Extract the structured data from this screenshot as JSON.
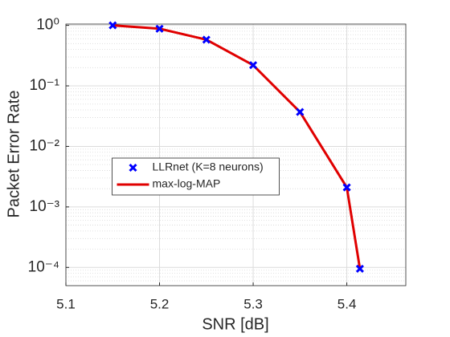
{
  "chart_data": {
    "type": "line",
    "xlabel": "SNR [dB]",
    "ylabel": "Packet Error Rate",
    "x": [
      5.15,
      5.2,
      5.25,
      5.3,
      5.35,
      5.4,
      5.414
    ],
    "series": [
      {
        "name": "LLRnet (K=8 neurons)",
        "color": "#0000ff",
        "marker": "x",
        "line": false,
        "values": [
          1.0,
          0.88,
          0.58,
          0.22,
          0.037,
          0.0021,
          9.5e-05
        ]
      },
      {
        "name": "max-log-MAP",
        "color": "#e00000",
        "marker": "none",
        "line": true,
        "values": [
          1.0,
          0.88,
          0.58,
          0.22,
          0.037,
          0.0021,
          9.5e-05
        ]
      }
    ],
    "xlim": [
      5.1,
      5.463
    ],
    "ylim": [
      5e-05,
      1.05
    ],
    "log_y": true,
    "xticks": [
      5.1,
      5.2,
      5.3,
      5.4
    ],
    "yticks": [
      {
        "value": 1,
        "label": "10⁰"
      },
      {
        "value": 0.1,
        "label": "10⁻¹"
      },
      {
        "value": 0.01,
        "label": "10⁻²"
      },
      {
        "value": 0.001,
        "label": "10⁻³"
      },
      {
        "value": 0.0001,
        "label": "10⁻⁴"
      }
    ],
    "grid": true,
    "minor_grid": true,
    "legend_loc": "center"
  }
}
